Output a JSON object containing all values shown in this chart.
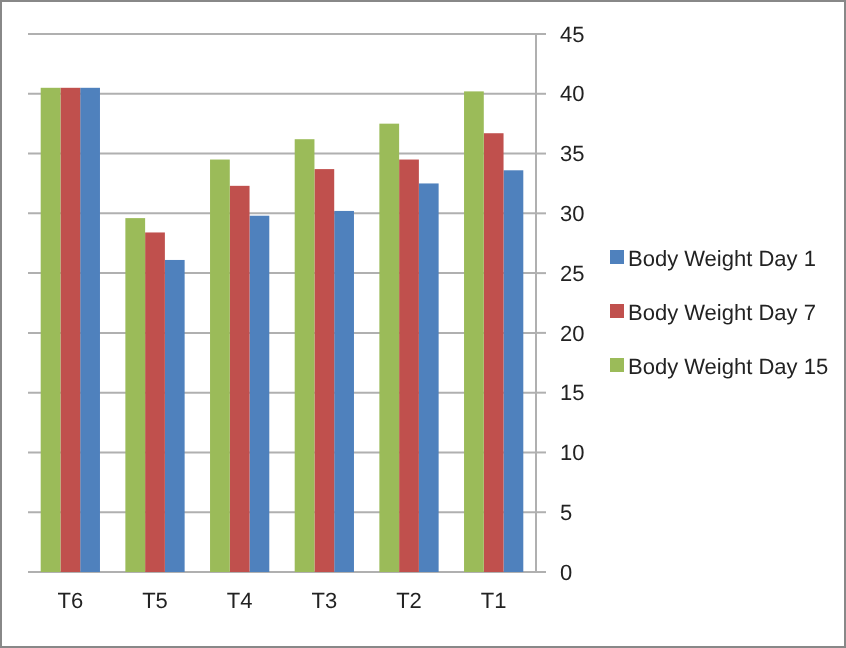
{
  "chart_data": {
    "type": "bar",
    "categories": [
      "T6",
      "T5",
      "T4",
      "T3",
      "T2",
      "T1"
    ],
    "series": [
      {
        "name": "Body Weight Day 1",
        "color": "#4f81bd",
        "values": [
          40.5,
          26.1,
          29.8,
          30.2,
          32.5,
          33.6
        ]
      },
      {
        "name": "Body Weight Day 7",
        "color": "#c0504d",
        "values": [
          40.5,
          28.4,
          32.3,
          33.7,
          34.5,
          36.7
        ]
      },
      {
        "name": "Body Weight Day 15",
        "color": "#9bbb59",
        "values": [
          40.5,
          29.6,
          34.5,
          36.2,
          37.5,
          40.2
        ]
      }
    ],
    "ylim": [
      0,
      45
    ],
    "yticks": [
      0,
      5,
      10,
      15,
      20,
      25,
      30,
      35,
      40,
      45
    ],
    "grid": "y",
    "legend": "right"
  }
}
